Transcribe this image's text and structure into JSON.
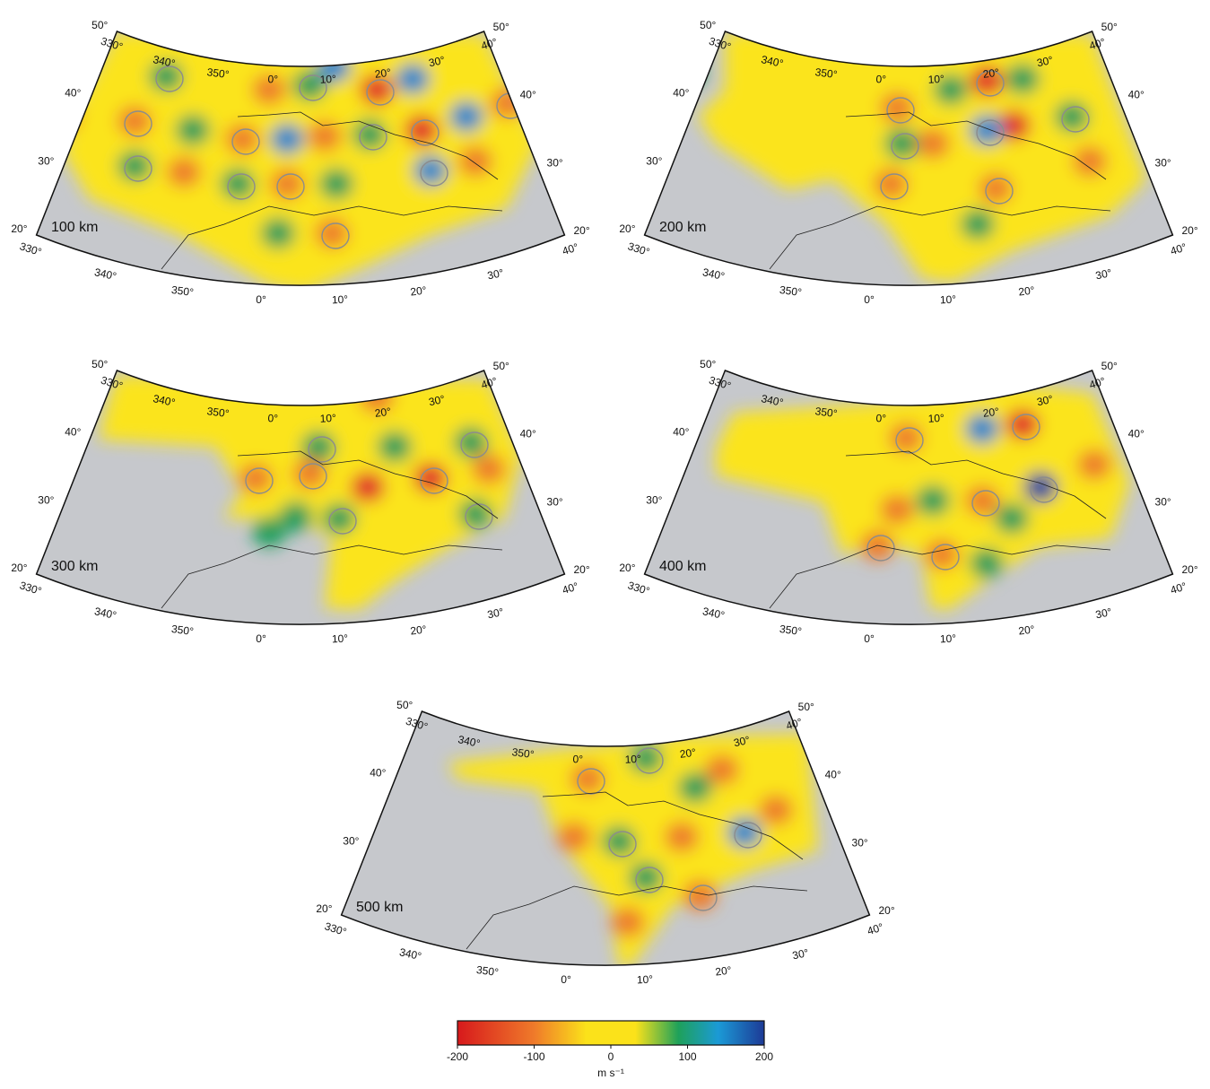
{
  "panels": [
    {
      "depth_label": "100 km",
      "top_lon_labels": [
        "330°",
        "340°",
        "350°",
        "0°",
        "10°",
        "20°",
        "30°",
        "40°"
      ],
      "bottom_lon_labels": [
        "330°",
        "340°",
        "350°",
        "0°",
        "10°",
        "20°",
        "30°",
        "40°"
      ],
      "left_lat_labels": [
        "50°",
        "40°",
        "30°",
        "20°"
      ],
      "right_lat_labels": [
        "50°",
        "40°",
        "30°",
        "20°"
      ]
    },
    {
      "depth_label": "200 km",
      "top_lon_labels": [
        "330°",
        "340°",
        "350°",
        "0°",
        "10°",
        "20°",
        "30°",
        "40°"
      ],
      "bottom_lon_labels": [
        "330°",
        "340°",
        "350°",
        "0°",
        "10°",
        "20°",
        "30°",
        "40°"
      ],
      "left_lat_labels": [
        "50°",
        "40°",
        "30°",
        "20°"
      ],
      "right_lat_labels": [
        "50°",
        "40°",
        "30°",
        "20°"
      ]
    },
    {
      "depth_label": "300 km",
      "top_lon_labels": [
        "330°",
        "340°",
        "350°",
        "0°",
        "10°",
        "20°",
        "30°",
        "40°"
      ],
      "bottom_lon_labels": [
        "330°",
        "340°",
        "350°",
        "0°",
        "10°",
        "20°",
        "30°",
        "40°"
      ],
      "left_lat_labels": [
        "50°",
        "40°",
        "30°",
        "20°"
      ],
      "right_lat_labels": [
        "50°",
        "40°",
        "30°",
        "20°"
      ]
    },
    {
      "depth_label": "400 km",
      "top_lon_labels": [
        "330°",
        "340°",
        "350°",
        "0°",
        "10°",
        "20°",
        "30°",
        "40°"
      ],
      "bottom_lon_labels": [
        "330°",
        "340°",
        "350°",
        "0°",
        "10°",
        "20°",
        "30°",
        "40°"
      ],
      "left_lat_labels": [
        "50°",
        "40°",
        "30°",
        "20°"
      ],
      "right_lat_labels": [
        "50°",
        "40°",
        "30°",
        "20°"
      ]
    },
    {
      "depth_label": "500 km",
      "top_lon_labels": [
        "330°",
        "340°",
        "350°",
        "0°",
        "10°",
        "20°",
        "30°",
        "40°"
      ],
      "bottom_lon_labels": [
        "330°",
        "340°",
        "350°",
        "0°",
        "10°",
        "20°",
        "30°",
        "40°"
      ],
      "left_lat_labels": [
        "50°",
        "40°",
        "30°",
        "20°"
      ],
      "right_lat_labels": [
        "50°",
        "40°",
        "30°",
        "20°"
      ]
    }
  ],
  "colorbar": {
    "lim": [
      -200,
      200
    ],
    "ticks": [
      -200,
      -100,
      0,
      100,
      200
    ],
    "unit": "m s⁻¹"
  }
}
